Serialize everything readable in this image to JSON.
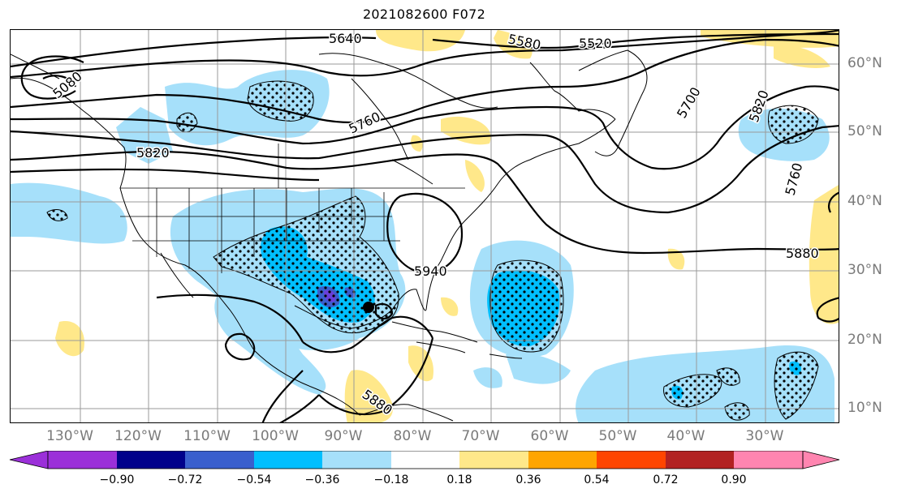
{
  "title": "2021082600 F072",
  "lon_labels": [
    "130°W",
    "120°W",
    "110°W",
    "100°W",
    "90°W",
    "80°W",
    "70°W",
    "60°W",
    "50°W",
    "40°W",
    "30°W"
  ],
  "lat_labels": [
    "60°N",
    "50°N",
    "40°N",
    "30°N",
    "20°N",
    "10°N"
  ],
  "contour_labels": [
    "5640",
    "5580",
    "5520",
    "5080",
    "5760",
    "5700",
    "5820",
    "5820",
    "5760",
    "5880",
    "5940",
    "5880"
  ],
  "colorbar": {
    "ticks": [
      "−0.90",
      "−0.72",
      "−0.54",
      "−0.36",
      "−0.18",
      "0.18",
      "0.36",
      "0.54",
      "0.72",
      "0.90"
    ],
    "colors": [
      "#9b30d9",
      "#00008b",
      "#3a5fcd",
      "#00bfff",
      "#a6e0fa",
      "#ffffff",
      "#ffe88a",
      "#ffa500",
      "#ff4500",
      "#b22222",
      "#ff85b0"
    ]
  }
}
